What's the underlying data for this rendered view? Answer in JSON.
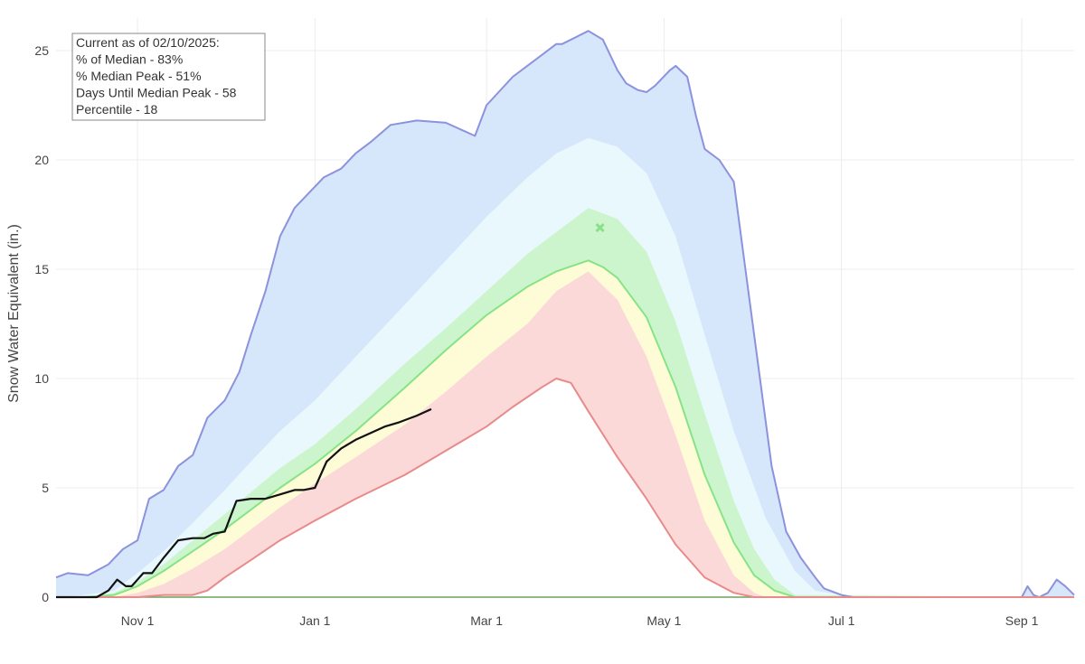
{
  "chart_data": {
    "type": "area",
    "ylabel": "Snow Water Equivalent (in.)",
    "ylim": [
      0,
      26.5
    ],
    "y_ticks": [
      0,
      5,
      10,
      15,
      20,
      25
    ],
    "x_range": [
      "2024-10-04",
      "2025-09-19"
    ],
    "x_ticks": [
      {
        "date": "2024-11-01",
        "label": "Nov 1"
      },
      {
        "date": "2025-01-01",
        "label": "Jan 1"
      },
      {
        "date": "2025-03-01",
        "label": "Mar 1"
      },
      {
        "date": "2025-05-01",
        "label": "May 1"
      },
      {
        "date": "2025-07-01",
        "label": "Jul 1"
      },
      {
        "date": "2025-09-01",
        "label": "Sep 1"
      }
    ],
    "grid": true,
    "legend": "none",
    "annotation": {
      "lines": [
        "Current as of 02/10/2025:",
        "% of Median - 83%",
        "% Median Peak - 51%",
        "Days Until Median Peak - 58",
        "Percentile - 18"
      ]
    },
    "bands": [
      {
        "band": "max",
        "color": "#d6e6fb",
        "line_color": "#8c92dc",
        "x": [
          "2024-10-04",
          "2024-10-08",
          "2024-10-15",
          "2024-10-22",
          "2024-10-27",
          "2024-11-01",
          "2024-11-05",
          "2024-11-10",
          "2024-11-15",
          "2024-11-20",
          "2024-11-25",
          "2024-12-01",
          "2024-12-06",
          "2024-12-10",
          "2024-12-15",
          "2024-12-20",
          "2024-12-25",
          "2024-12-30",
          "2025-01-04",
          "2025-01-10",
          "2025-01-15",
          "2025-01-20",
          "2025-01-27",
          "2025-02-05",
          "2025-02-15",
          "2025-02-25",
          "2025-03-01",
          "2025-03-10",
          "2025-03-20",
          "2025-03-25",
          "2025-03-27",
          "2025-04-05",
          "2025-04-10",
          "2025-04-15",
          "2025-04-18",
          "2025-04-22",
          "2025-04-25",
          "2025-04-28",
          "2025-05-03",
          "2025-05-05",
          "2025-05-09",
          "2025-05-12",
          "2025-05-15",
          "2025-05-20",
          "2025-05-25",
          "2025-05-28",
          "2025-06-02",
          "2025-06-07",
          "2025-06-12",
          "2025-06-17",
          "2025-06-22",
          "2025-06-25",
          "2025-07-01",
          "2025-07-05",
          "2025-07-10",
          "2025-07-15",
          "2025-08-01",
          "2025-08-20",
          "2025-09-01",
          "2025-09-03",
          "2025-09-05",
          "2025-09-07",
          "2025-09-10",
          "2025-09-13",
          "2025-09-16",
          "2025-09-19"
        ],
        "values": [
          0.9,
          1.1,
          1.0,
          1.5,
          2.2,
          2.6,
          4.5,
          4.9,
          6.0,
          6.5,
          8.2,
          9.0,
          10.3,
          12.0,
          14.0,
          16.5,
          17.8,
          18.5,
          19.2,
          19.6,
          20.3,
          20.8,
          21.6,
          21.8,
          21.7,
          21.1,
          22.5,
          23.8,
          24.8,
          25.3,
          25.3,
          25.9,
          25.5,
          24.1,
          23.5,
          23.2,
          23.1,
          23.4,
          24.1,
          24.3,
          23.8,
          22.0,
          20.5,
          20.0,
          19.0,
          16.0,
          11.0,
          6.0,
          3.0,
          1.8,
          0.9,
          0.4,
          0.1,
          0.0,
          0.0,
          0.0,
          0.0,
          0.0,
          0.0,
          0.5,
          0.1,
          0.0,
          0.2,
          0.8,
          0.5,
          0.1
        ]
      },
      {
        "band": "90th",
        "color": "#e8f8fc",
        "x": [
          "2024-10-04",
          "2024-10-14",
          "2024-10-24",
          "2024-11-01",
          "2024-11-10",
          "2024-11-20",
          "2024-12-01",
          "2024-12-10",
          "2024-12-20",
          "2025-01-01",
          "2025-01-15",
          "2025-02-01",
          "2025-02-15",
          "2025-03-01",
          "2025-03-15",
          "2025-03-25",
          "2025-04-05",
          "2025-04-15",
          "2025-04-25",
          "2025-05-05",
          "2025-05-15",
          "2025-05-25",
          "2025-06-05",
          "2025-06-15",
          "2025-06-22",
          "2025-07-01",
          "2025-07-10",
          "2025-09-19"
        ],
        "values": [
          0.0,
          0.1,
          0.3,
          1.1,
          2.1,
          3.4,
          4.9,
          6.2,
          7.6,
          9.0,
          11.0,
          13.4,
          15.4,
          17.4,
          19.2,
          20.3,
          21.0,
          20.6,
          19.4,
          16.5,
          12.0,
          7.6,
          3.6,
          1.2,
          0.3,
          0.1,
          0.0,
          0.0
        ]
      },
      {
        "band": "70th",
        "color": "#cdf5cd",
        "x": [
          "2024-10-04",
          "2024-10-14",
          "2024-10-24",
          "2024-11-01",
          "2024-11-10",
          "2024-11-20",
          "2024-12-01",
          "2024-12-10",
          "2024-12-20",
          "2025-01-01",
          "2025-01-15",
          "2025-02-01",
          "2025-02-15",
          "2025-03-01",
          "2025-03-15",
          "2025-03-25",
          "2025-04-05",
          "2025-04-15",
          "2025-04-25",
          "2025-05-05",
          "2025-05-15",
          "2025-05-25",
          "2025-06-01",
          "2025-06-08",
          "2025-06-15",
          "2025-09-19"
        ],
        "values": [
          0.0,
          0.0,
          0.2,
          0.7,
          1.5,
          2.6,
          3.8,
          4.8,
          5.9,
          7.0,
          8.6,
          10.7,
          12.3,
          14.0,
          15.7,
          16.7,
          17.8,
          17.3,
          15.8,
          12.6,
          8.4,
          4.4,
          2.2,
          0.8,
          0.1,
          0.0
        ]
      },
      {
        "band": "median",
        "color": "#fdfcd7",
        "line_color": "#86e486",
        "x": [
          "2024-10-04",
          "2024-10-14",
          "2024-10-24",
          "2024-11-01",
          "2024-11-10",
          "2024-11-20",
          "2024-12-01",
          "2024-12-10",
          "2024-12-20",
          "2025-01-01",
          "2025-01-15",
          "2025-02-01",
          "2025-02-15",
          "2025-03-01",
          "2025-03-15",
          "2025-03-25",
          "2025-04-05",
          "2025-04-10",
          "2025-04-15",
          "2025-04-25",
          "2025-05-05",
          "2025-05-15",
          "2025-05-25",
          "2025-06-01",
          "2025-06-08",
          "2025-06-15",
          "2025-09-19"
        ],
        "values": [
          0.0,
          0.0,
          0.1,
          0.5,
          1.2,
          2.1,
          3.1,
          4.0,
          5.0,
          6.1,
          7.6,
          9.6,
          11.3,
          12.9,
          14.2,
          14.9,
          15.4,
          15.1,
          14.6,
          12.8,
          9.6,
          5.6,
          2.5,
          1.0,
          0.3,
          0.0,
          0.0
        ]
      },
      {
        "band": "30th",
        "color": "#fbd9d9",
        "x": [
          "2024-10-04",
          "2024-10-24",
          "2024-11-01",
          "2024-11-10",
          "2024-11-20",
          "2024-12-01",
          "2024-12-10",
          "2024-12-20",
          "2025-01-01",
          "2025-01-15",
          "2025-02-01",
          "2025-02-15",
          "2025-03-01",
          "2025-03-15",
          "2025-03-25",
          "2025-04-05",
          "2025-04-15",
          "2025-04-25",
          "2025-05-05",
          "2025-05-15",
          "2025-05-25",
          "2025-06-01",
          "2025-06-05",
          "2025-09-19"
        ],
        "values": [
          0.0,
          0.0,
          0.2,
          0.6,
          1.3,
          2.2,
          3.1,
          4.1,
          5.2,
          6.4,
          7.9,
          9.4,
          11.0,
          12.5,
          14.0,
          14.9,
          13.6,
          11.0,
          7.4,
          3.5,
          1.0,
          0.2,
          0.0,
          0.0
        ]
      },
      {
        "band": "10th",
        "color": "#ffffff",
        "line_color": "#e88a8a",
        "x": [
          "2024-10-04",
          "2024-11-01",
          "2024-11-10",
          "2024-11-20",
          "2024-11-25",
          "2024-12-01",
          "2024-12-10",
          "2024-12-20",
          "2025-01-01",
          "2025-01-15",
          "2025-02-01",
          "2025-02-15",
          "2025-03-01",
          "2025-03-10",
          "2025-03-20",
          "2025-03-25",
          "2025-03-30",
          "2025-04-05",
          "2025-04-15",
          "2025-04-25",
          "2025-05-05",
          "2025-05-15",
          "2025-05-25",
          "2025-06-01",
          "2025-09-19"
        ],
        "values": [
          0.0,
          0.0,
          0.1,
          0.1,
          0.3,
          0.9,
          1.7,
          2.6,
          3.5,
          4.5,
          5.6,
          6.7,
          7.8,
          8.7,
          9.6,
          10.0,
          9.8,
          8.5,
          6.4,
          4.5,
          2.4,
          0.9,
          0.2,
          0.0,
          0.0
        ]
      }
    ],
    "series": [
      {
        "name": "",
        "color": "#111111",
        "x": [
          "2024-10-04",
          "2024-10-18",
          "2024-10-22",
          "2024-10-25",
          "2024-10-28",
          "2024-10-30",
          "2024-11-03",
          "2024-11-06",
          "2024-11-10",
          "2024-11-15",
          "2024-11-20",
          "2024-11-24",
          "2024-11-27",
          "2024-12-01",
          "2024-12-05",
          "2024-12-10",
          "2024-12-15",
          "2024-12-20",
          "2024-12-25",
          "2024-12-28",
          "2025-01-01",
          "2025-01-05",
          "2025-01-10",
          "2025-01-15",
          "2025-01-20",
          "2025-01-25",
          "2025-01-30",
          "2025-02-05",
          "2025-02-10"
        ],
        "values": [
          0.0,
          0.0,
          0.3,
          0.8,
          0.5,
          0.5,
          1.1,
          1.1,
          1.8,
          2.6,
          2.7,
          2.7,
          2.9,
          3.0,
          4.4,
          4.5,
          4.5,
          4.7,
          4.9,
          4.9,
          5.0,
          6.2,
          6.8,
          7.2,
          7.5,
          7.8,
          8.0,
          8.3,
          8.6
        ]
      },
      {
        "name": "",
        "color": "#88e088",
        "mode": "marker",
        "x": [
          "2025-04-09"
        ],
        "values": [
          16.9
        ]
      }
    ]
  }
}
